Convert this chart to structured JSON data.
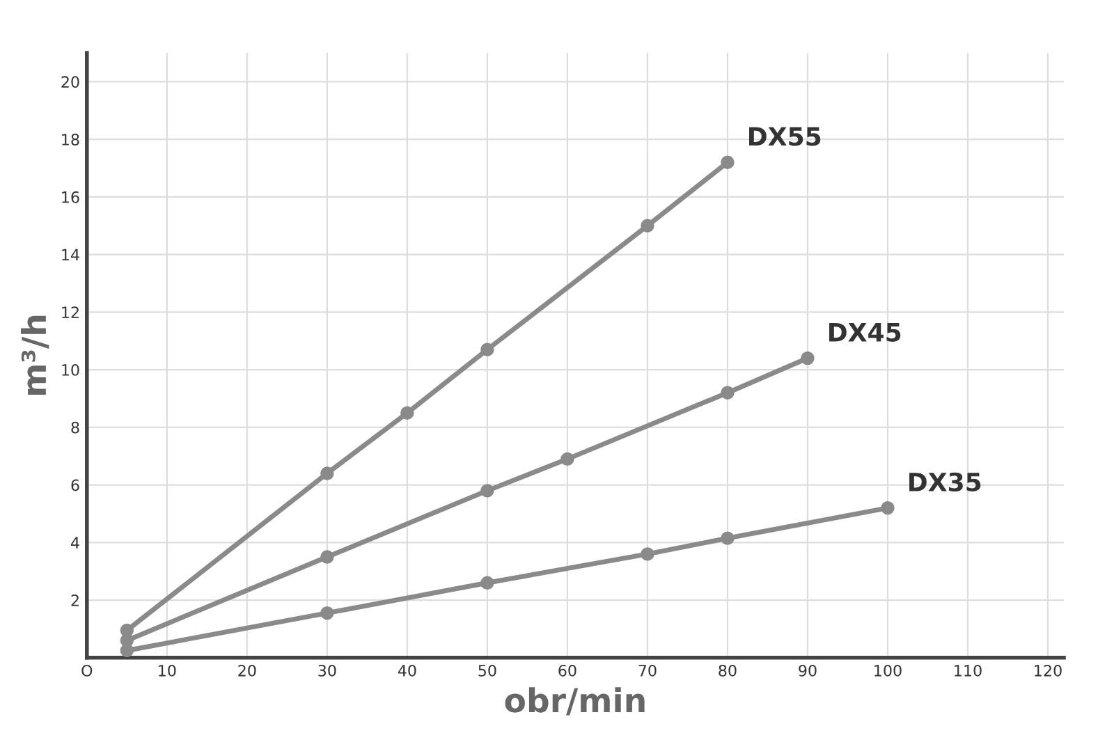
{
  "chart_data": {
    "type": "line",
    "xlabel": "obr/min",
    "ylabel": "m³/h",
    "xlim": [
      0,
      122
    ],
    "ylim": [
      0,
      21
    ],
    "xticks": [
      {
        "value": 0,
        "label": "O"
      },
      10,
      20,
      30,
      40,
      50,
      60,
      70,
      80,
      90,
      100,
      110,
      120
    ],
    "yticks": [
      2,
      4,
      6,
      8,
      10,
      12,
      14,
      16,
      18,
      20
    ],
    "grid": true,
    "marker": "circle",
    "line_style": "solid",
    "series": [
      {
        "name": "DX55",
        "color": "#8a8a8a",
        "x": [
          5,
          30,
          40,
          50,
          70,
          80
        ],
        "values": [
          0.95,
          6.4,
          8.5,
          10.7,
          15.0,
          17.2
        ]
      },
      {
        "name": "DX45",
        "color": "#8a8a8a",
        "x": [
          5,
          30,
          50,
          60,
          80,
          90
        ],
        "values": [
          0.6,
          3.5,
          5.8,
          6.9,
          9.2,
          10.4
        ]
      },
      {
        "name": "DX35",
        "color": "#8a8a8a",
        "x": [
          5,
          30,
          50,
          70,
          80,
          100
        ],
        "values": [
          0.25,
          1.55,
          2.6,
          3.6,
          4.15,
          5.2
        ]
      }
    ]
  }
}
